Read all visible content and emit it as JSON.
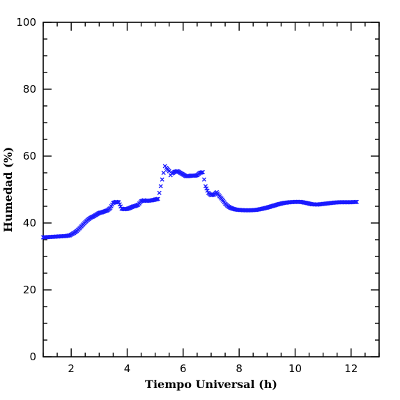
{
  "chart_data": {
    "type": "scatter",
    "xlabel": "Tiempo Universal (h)",
    "ylabel": "Humedad (%)",
    "xlim": [
      1,
      13
    ],
    "ylim": [
      0,
      100
    ],
    "x_ticks": [
      2,
      4,
      6,
      8,
      10,
      12
    ],
    "y_ticks": [
      0,
      20,
      40,
      60,
      80,
      100
    ],
    "x_minor_step": 0.5,
    "y_minor_step": 5,
    "grid": false,
    "marker": "x",
    "marker_color": "#1a1aff",
    "series": [
      {
        "points": [
          [
            1.0,
            35.7
          ],
          [
            1.2,
            35.8
          ],
          [
            1.4,
            35.9
          ],
          [
            1.6,
            36.0
          ],
          [
            1.8,
            36.1
          ],
          [
            1.95,
            36.3
          ],
          [
            2.1,
            37.0
          ],
          [
            2.2,
            37.6
          ],
          [
            2.3,
            38.4
          ],
          [
            2.4,
            39.3
          ],
          [
            2.5,
            40.2
          ],
          [
            2.6,
            41.0
          ],
          [
            2.7,
            41.6
          ],
          [
            2.8,
            42.0
          ],
          [
            2.9,
            42.5
          ],
          [
            3.0,
            43.0
          ],
          [
            3.1,
            43.2
          ],
          [
            3.2,
            43.5
          ],
          [
            3.3,
            43.8
          ],
          [
            3.4,
            44.5
          ],
          [
            3.5,
            46.0
          ],
          [
            3.6,
            46.3
          ],
          [
            3.7,
            46.2
          ],
          [
            3.8,
            44.3
          ],
          [
            3.9,
            44.1
          ],
          [
            4.0,
            44.2
          ],
          [
            4.1,
            44.5
          ],
          [
            4.2,
            44.9
          ],
          [
            4.3,
            45.1
          ],
          [
            4.4,
            45.5
          ],
          [
            4.5,
            46.5
          ],
          [
            4.6,
            46.8
          ],
          [
            4.7,
            46.6
          ],
          [
            4.8,
            46.7
          ],
          [
            4.9,
            46.8
          ],
          [
            5.0,
            47.0
          ],
          [
            5.1,
            47.2
          ],
          [
            5.15,
            49.0
          ],
          [
            5.2,
            51.0
          ],
          [
            5.25,
            53.0
          ],
          [
            5.3,
            55.0
          ],
          [
            5.35,
            57.0
          ],
          [
            5.4,
            56.5
          ],
          [
            5.5,
            55.5
          ],
          [
            5.55,
            54.3
          ],
          [
            5.6,
            54.8
          ],
          [
            5.7,
            55.3
          ],
          [
            5.8,
            55.5
          ],
          [
            5.9,
            55.0
          ],
          [
            6.0,
            54.5
          ],
          [
            6.1,
            54.0
          ],
          [
            6.2,
            54.0
          ],
          [
            6.3,
            54.2
          ],
          [
            6.4,
            54.1
          ],
          [
            6.5,
            54.3
          ],
          [
            6.6,
            55.0
          ],
          [
            6.7,
            55.2
          ],
          [
            6.75,
            53.0
          ],
          [
            6.8,
            51.0
          ],
          [
            6.9,
            49.0
          ],
          [
            7.0,
            48.3
          ],
          [
            7.1,
            48.5
          ],
          [
            7.2,
            49.2
          ],
          [
            7.3,
            48.0
          ],
          [
            7.4,
            47.0
          ],
          [
            7.5,
            45.8
          ],
          [
            7.6,
            45.0
          ],
          [
            7.7,
            44.5
          ],
          [
            7.8,
            44.2
          ],
          [
            7.9,
            44.0
          ],
          [
            8.0,
            43.9
          ],
          [
            8.2,
            43.8
          ],
          [
            8.4,
            43.8
          ],
          [
            8.6,
            43.9
          ],
          [
            8.8,
            44.2
          ],
          [
            9.0,
            44.6
          ],
          [
            9.2,
            45.1
          ],
          [
            9.4,
            45.6
          ],
          [
            9.6,
            46.0
          ],
          [
            9.8,
            46.2
          ],
          [
            10.0,
            46.3
          ],
          [
            10.2,
            46.3
          ],
          [
            10.4,
            46.0
          ],
          [
            10.5,
            45.8
          ],
          [
            10.6,
            45.6
          ],
          [
            10.8,
            45.5
          ],
          [
            11.0,
            45.7
          ],
          [
            11.2,
            45.9
          ],
          [
            11.4,
            46.1
          ],
          [
            11.6,
            46.2
          ],
          [
            11.8,
            46.2
          ],
          [
            12.0,
            46.2
          ],
          [
            12.2,
            46.3
          ]
        ]
      }
    ]
  }
}
